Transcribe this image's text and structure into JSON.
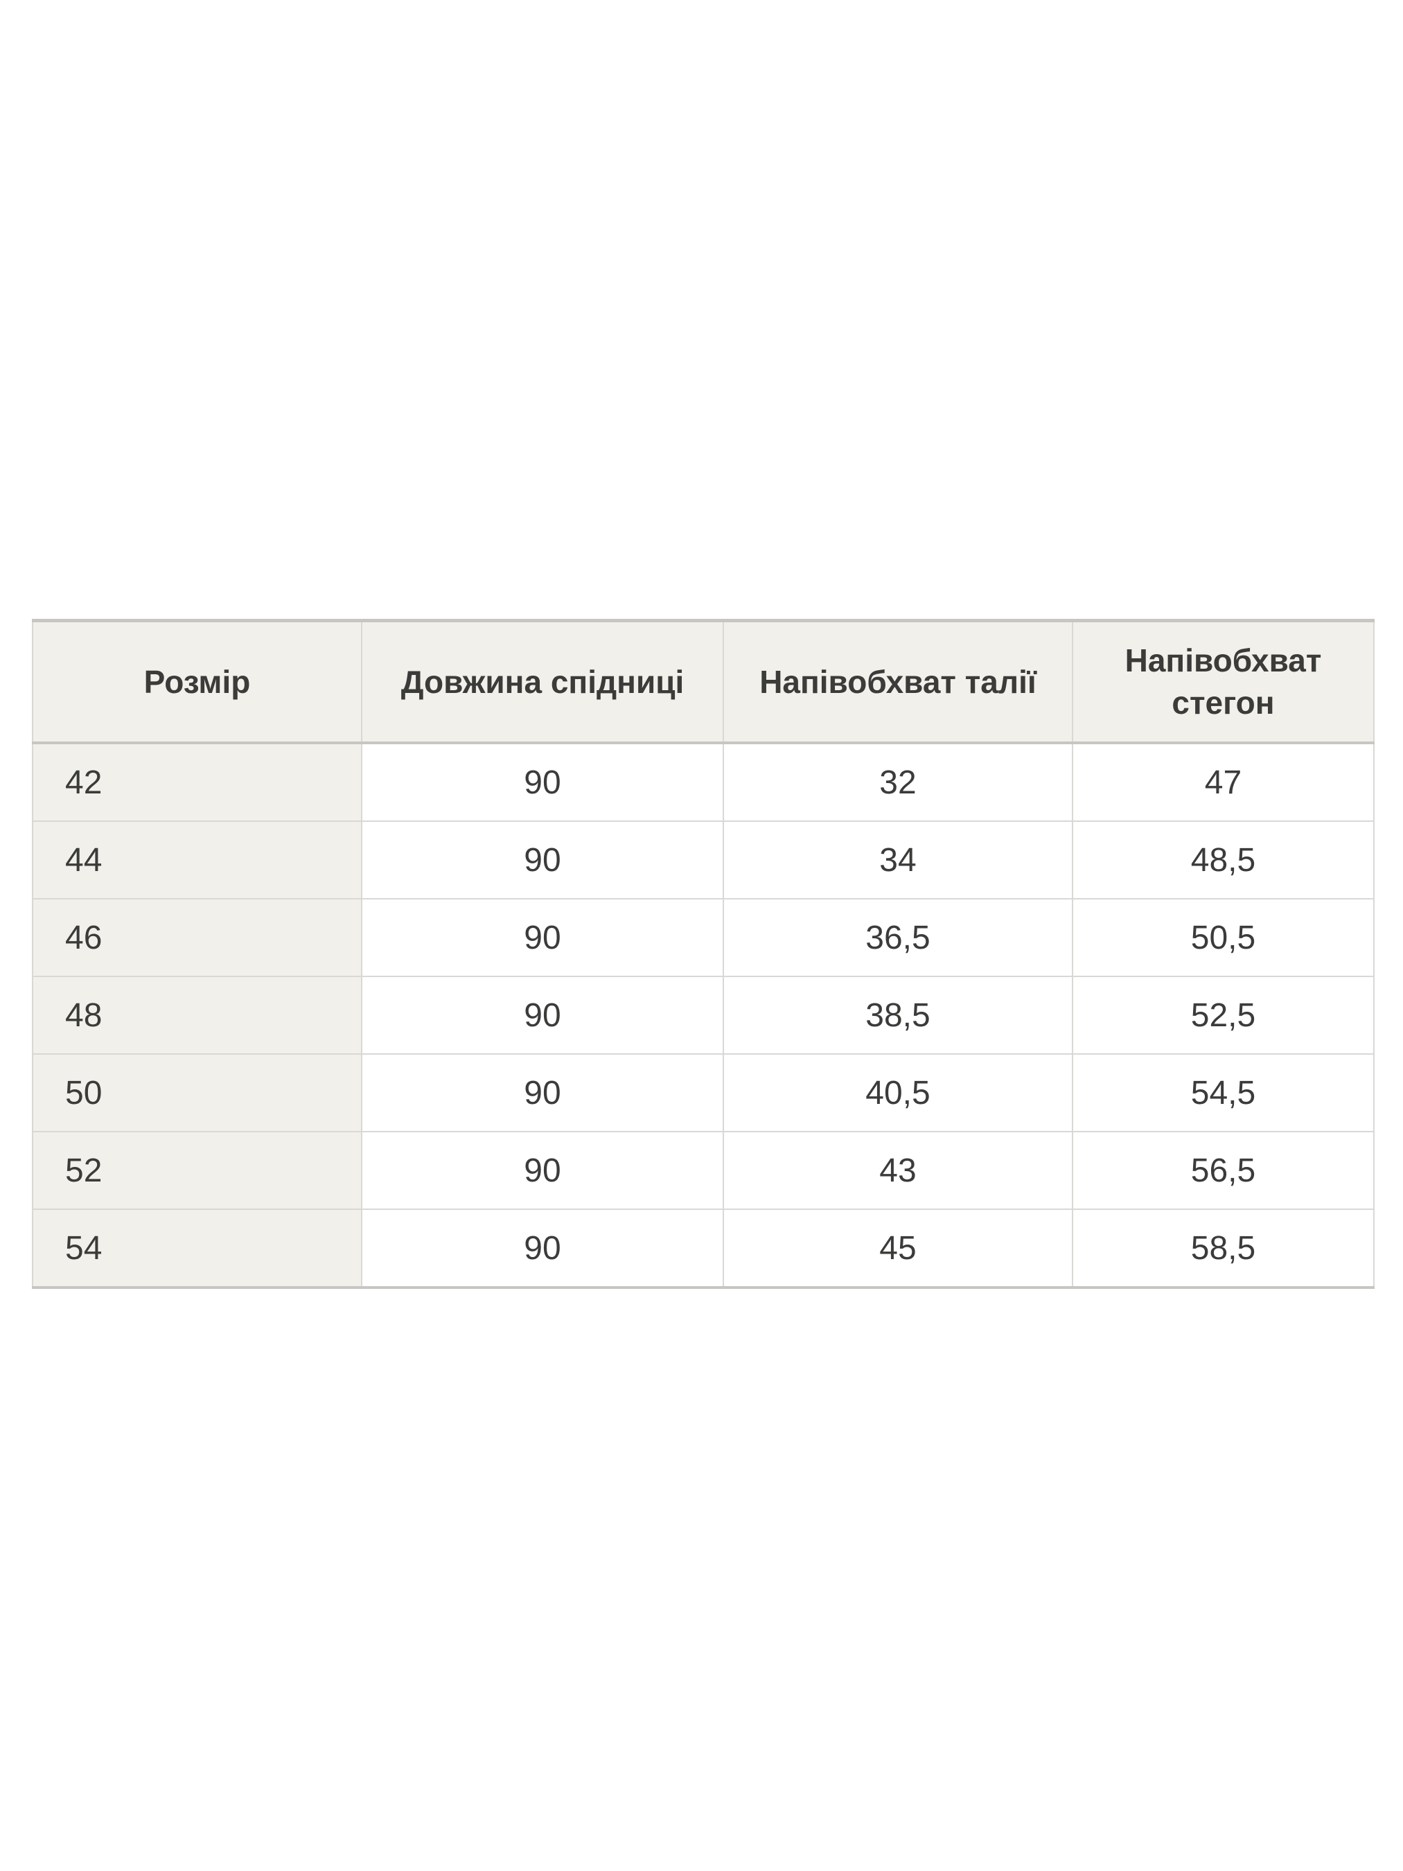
{
  "chart_data": {
    "type": "table",
    "columns": [
      "Розмір",
      "Довжина спідниці",
      "Напівобхват талії",
      "Напівобхват стегон"
    ],
    "rows": [
      [
        "42",
        "90",
        "32",
        "47"
      ],
      [
        "44",
        "90",
        "34",
        "48,5"
      ],
      [
        "46",
        "90",
        "36,5",
        "50,5"
      ],
      [
        "48",
        "90",
        "38,5",
        "52,5"
      ],
      [
        "50",
        "90",
        "40,5",
        "54,5"
      ],
      [
        "52",
        "90",
        "43",
        "56,5"
      ],
      [
        "54",
        "90",
        "45",
        "58,5"
      ]
    ],
    "decimal_separator": ",",
    "layout": {
      "header_position": "top",
      "first_column_highlighted": true,
      "grid": "on"
    }
  },
  "colors": {
    "header_bg": "#f2f0ea",
    "label_bg": "#f2f0ea",
    "cell_bg": "#ffffff",
    "border": "#d9d8d5",
    "border_strong": "#c7c6c3",
    "text": "#3b3b3a",
    "page_bg": "#ffffff"
  }
}
